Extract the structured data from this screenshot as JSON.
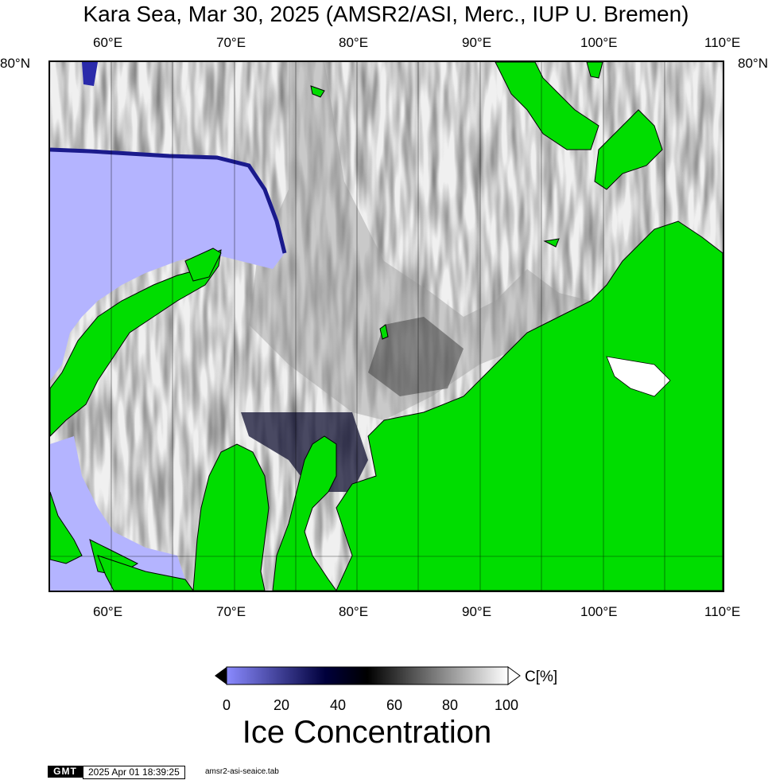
{
  "title": "Kara Sea, Mar 30, 2025 (AMSR2/ASI, Merc., IUP U. Bremen)",
  "longitude_labels": [
    "60°E",
    "70°E",
    "80°E",
    "90°E",
    "100°E",
    "110°E"
  ],
  "latitude_label": "80°N",
  "colorbar": {
    "title": "Ice Concentration",
    "unit": "C[%]",
    "ticks": [
      "0",
      "20",
      "40",
      "60",
      "80",
      "100"
    ],
    "colors": {
      "low": "#8a8aff",
      "mid": "#00003c",
      "black": "#000000",
      "high": "#ffffff"
    }
  },
  "colors": {
    "land": "#00dd00",
    "open_water": "#b4b4ff",
    "coast": "#000000"
  },
  "footer": {
    "logo": "GMT",
    "timestamp": "2025 Apr 01 18:39:25",
    "command": "amsr2-asi-seaice.tab"
  }
}
